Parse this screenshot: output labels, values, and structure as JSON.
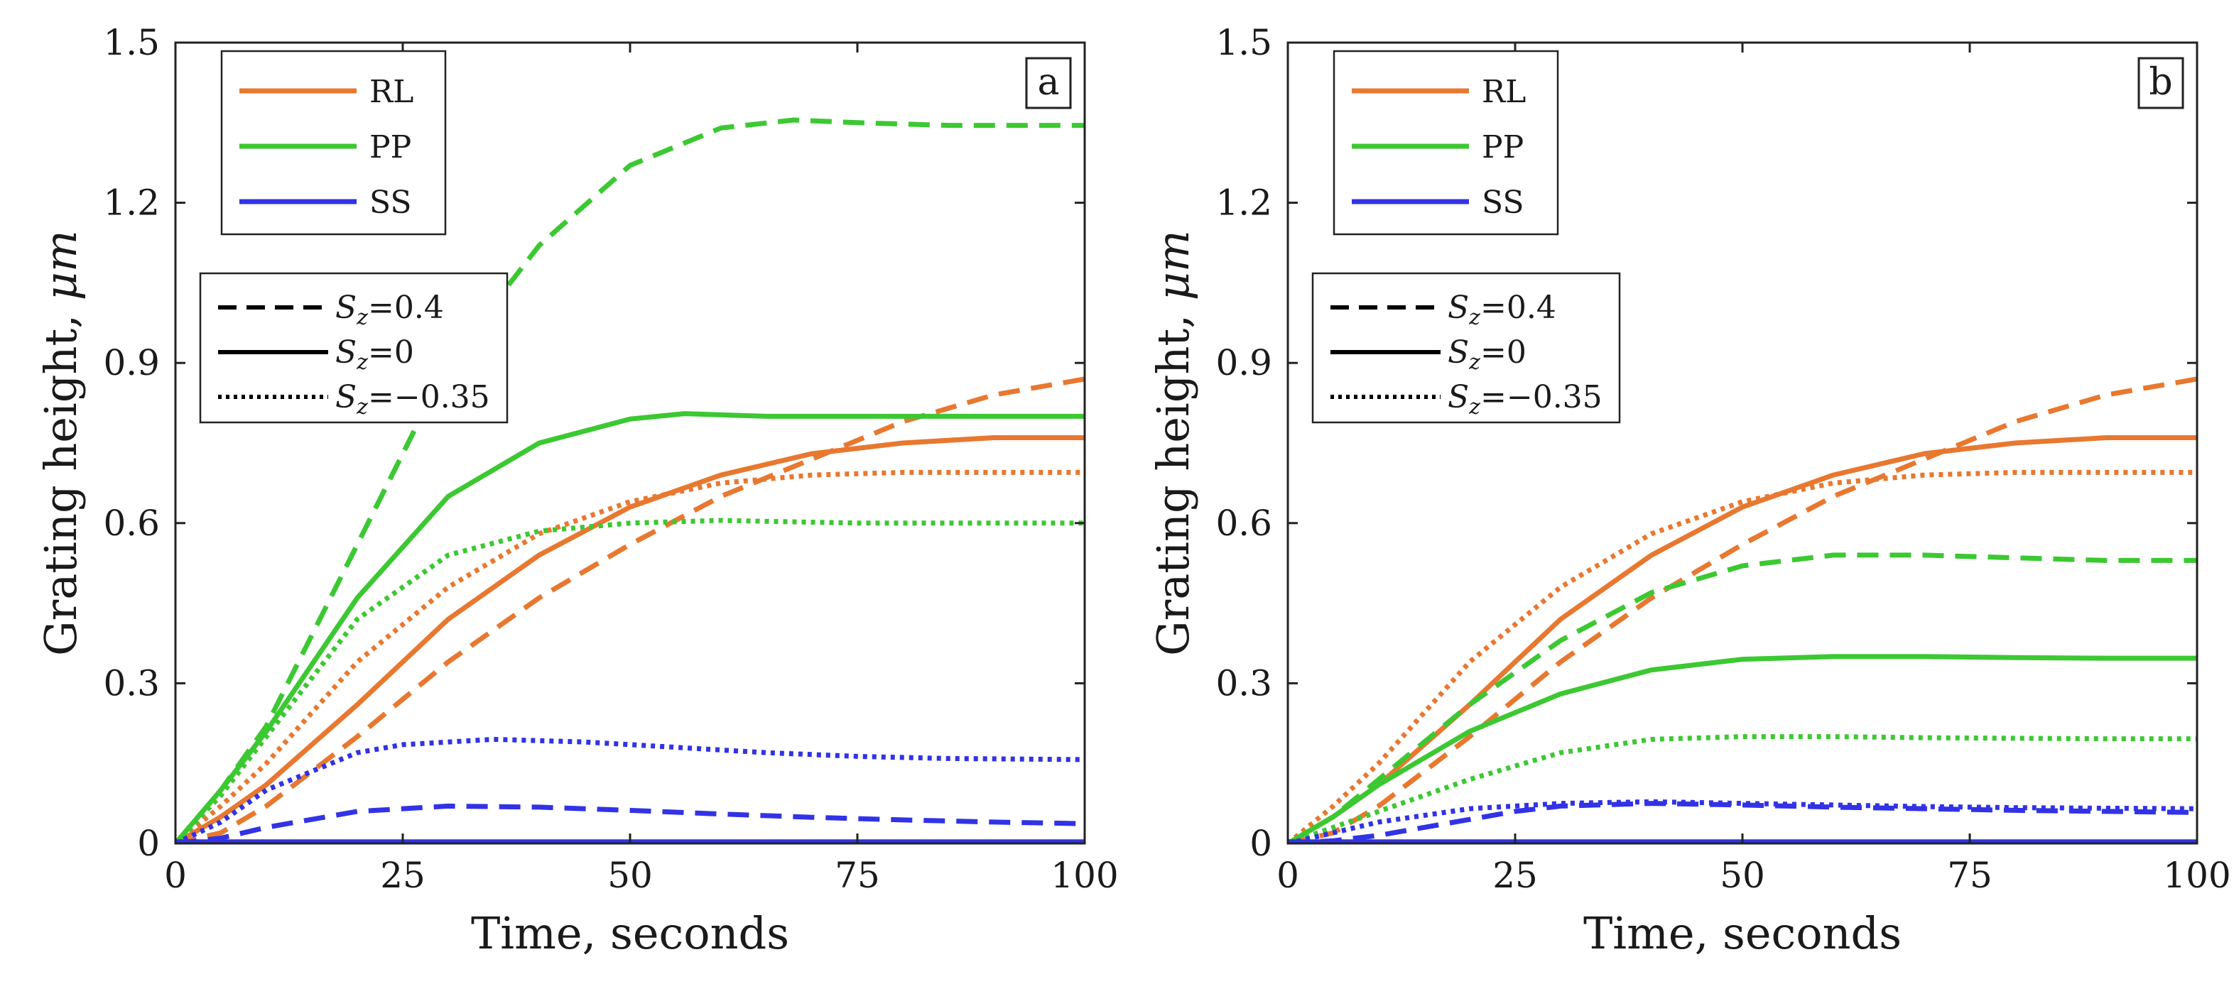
{
  "figure": {
    "colors": {
      "RL": "#E87830",
      "PP": "#3CC832",
      "SS": "#3232E6",
      "frame": "#222222",
      "legend_line": "#000000"
    }
  },
  "chart_data": [
    {
      "type": "line",
      "panel_label": "a",
      "xlabel": "Time, seconds",
      "ylabel_prefix": "Grating height, ",
      "ylabel_unit": "μm",
      "xlim": [
        0,
        100
      ],
      "ylim": [
        0,
        1.5
      ],
      "xticks": [
        0,
        25,
        50,
        75,
        100
      ],
      "xtick_labels": [
        "0",
        "25",
        "50",
        "75",
        "100"
      ],
      "yticks": [
        0,
        0.3,
        0.6,
        0.9,
        1.2,
        1.5
      ],
      "ytick_labels": [
        "0",
        "0.3",
        "0.6",
        "0.9",
        "1.2",
        "1.5"
      ],
      "legend_color": [
        {
          "label": "RL",
          "color": "#E87830"
        },
        {
          "label": "PP",
          "color": "#3CC832"
        },
        {
          "label": "SS",
          "color": "#3232E6"
        }
      ],
      "legend_style": [
        {
          "var": "S",
          "sub": "z",
          "value": "=0.4",
          "dash": "dashed"
        },
        {
          "var": "S",
          "sub": "z",
          "value": "=0",
          "dash": "solid"
        },
        {
          "var": "S",
          "sub": "z",
          "value": "=−0.35",
          "dash": "dotted"
        }
      ],
      "series": [
        {
          "name": "RL, Sz=0.4",
          "group": "RL",
          "style": "dashed",
          "x": [
            0,
            5,
            10,
            20,
            30,
            40,
            50,
            60,
            70,
            80,
            90,
            100
          ],
          "y": [
            0,
            0.02,
            0.07,
            0.2,
            0.34,
            0.46,
            0.56,
            0.65,
            0.72,
            0.79,
            0.84,
            0.87
          ]
        },
        {
          "name": "RL, Sz=0",
          "group": "RL",
          "style": "solid",
          "x": [
            0,
            5,
            10,
            20,
            30,
            40,
            50,
            60,
            70,
            80,
            90,
            100
          ],
          "y": [
            0,
            0.05,
            0.11,
            0.26,
            0.42,
            0.54,
            0.63,
            0.69,
            0.73,
            0.75,
            0.76,
            0.76
          ]
        },
        {
          "name": "RL, Sz=-0.35",
          "group": "RL",
          "style": "dotted",
          "x": [
            0,
            5,
            10,
            20,
            30,
            40,
            50,
            60,
            70,
            80,
            90,
            100
          ],
          "y": [
            0,
            0.07,
            0.15,
            0.34,
            0.48,
            0.58,
            0.64,
            0.675,
            0.69,
            0.695,
            0.695,
            0.695
          ]
        },
        {
          "name": "PP, Sz=0.4",
          "group": "PP",
          "style": "dashed",
          "x": [
            0,
            5,
            10,
            20,
            30,
            40,
            50,
            60,
            68,
            75,
            85,
            100
          ],
          "y": [
            0,
            0.1,
            0.22,
            0.56,
            0.9,
            1.12,
            1.27,
            1.34,
            1.355,
            1.35,
            1.345,
            1.345
          ]
        },
        {
          "name": "PP, Sz=0",
          "group": "PP",
          "style": "solid",
          "x": [
            0,
            5,
            10,
            20,
            30,
            40,
            50,
            56,
            65,
            75,
            85,
            100
          ],
          "y": [
            0,
            0.1,
            0.21,
            0.46,
            0.65,
            0.75,
            0.795,
            0.805,
            0.8,
            0.8,
            0.8,
            0.8
          ]
        },
        {
          "name": "PP, Sz=-0.35",
          "group": "PP",
          "style": "dotted",
          "x": [
            0,
            5,
            10,
            20,
            30,
            40,
            50,
            60,
            75,
            100
          ],
          "y": [
            0,
            0.09,
            0.2,
            0.42,
            0.54,
            0.585,
            0.6,
            0.605,
            0.6,
            0.6
          ]
        },
        {
          "name": "SS, Sz=0.4",
          "group": "SS",
          "style": "dashed",
          "x": [
            0,
            5,
            10,
            20,
            30,
            40,
            50,
            60,
            70,
            80,
            90,
            100
          ],
          "y": [
            0,
            0.01,
            0.03,
            0.06,
            0.07,
            0.068,
            0.062,
            0.055,
            0.049,
            0.044,
            0.04,
            0.037
          ]
        },
        {
          "name": "SS, Sz=0",
          "group": "SS",
          "style": "solid",
          "x": [
            0,
            100
          ],
          "y": [
            0.003,
            0.003
          ]
        },
        {
          "name": "SS, Sz=-0.35",
          "group": "SS",
          "style": "dotted",
          "x": [
            0,
            5,
            10,
            20,
            25,
            35,
            45,
            55,
            65,
            75,
            85,
            100
          ],
          "y": [
            0,
            0.04,
            0.1,
            0.17,
            0.185,
            0.195,
            0.19,
            0.18,
            0.17,
            0.163,
            0.159,
            0.157
          ]
        }
      ]
    },
    {
      "type": "line",
      "panel_label": "b",
      "xlabel": "Time, seconds",
      "ylabel_prefix": "Grating height, ",
      "ylabel_unit": "μm",
      "xlim": [
        0,
        100
      ],
      "ylim": [
        0,
        1.5
      ],
      "xticks": [
        0,
        25,
        50,
        75,
        100
      ],
      "xtick_labels": [
        "0",
        "25",
        "50",
        "75",
        "100"
      ],
      "yticks": [
        0,
        0.3,
        0.6,
        0.9,
        1.2,
        1.5
      ],
      "ytick_labels": [
        "0",
        "0.3",
        "0.6",
        "0.9",
        "1.2",
        "1.5"
      ],
      "legend_color": [
        {
          "label": "RL",
          "color": "#E87830"
        },
        {
          "label": "PP",
          "color": "#3CC832"
        },
        {
          "label": "SS",
          "color": "#3232E6"
        }
      ],
      "legend_style": [
        {
          "var": "S",
          "sub": "z",
          "value": "=0.4",
          "dash": "dashed"
        },
        {
          "var": "S",
          "sub": "z",
          "value": "=0",
          "dash": "solid"
        },
        {
          "var": "S",
          "sub": "z",
          "value": "=−0.35",
          "dash": "dotted"
        }
      ],
      "series": [
        {
          "name": "RL, Sz=0.4",
          "group": "RL",
          "style": "dashed",
          "x": [
            0,
            5,
            10,
            20,
            30,
            40,
            50,
            60,
            70,
            80,
            90,
            100
          ],
          "y": [
            0,
            0.02,
            0.07,
            0.2,
            0.34,
            0.46,
            0.56,
            0.65,
            0.72,
            0.79,
            0.84,
            0.87
          ]
        },
        {
          "name": "RL, Sz=0",
          "group": "RL",
          "style": "solid",
          "x": [
            0,
            5,
            10,
            20,
            30,
            40,
            50,
            60,
            70,
            80,
            90,
            100
          ],
          "y": [
            0,
            0.05,
            0.11,
            0.26,
            0.42,
            0.54,
            0.63,
            0.69,
            0.73,
            0.75,
            0.76,
            0.76
          ]
        },
        {
          "name": "RL, Sz=-0.35",
          "group": "RL",
          "style": "dotted",
          "x": [
            0,
            5,
            10,
            20,
            30,
            40,
            50,
            60,
            70,
            80,
            90,
            100
          ],
          "y": [
            0,
            0.07,
            0.15,
            0.34,
            0.48,
            0.58,
            0.64,
            0.675,
            0.69,
            0.695,
            0.695,
            0.695
          ]
        },
        {
          "name": "PP, Sz=0.4",
          "group": "PP",
          "style": "dashed",
          "x": [
            0,
            5,
            10,
            20,
            30,
            40,
            50,
            60,
            70,
            80,
            90,
            100
          ],
          "y": [
            0,
            0.05,
            0.12,
            0.26,
            0.38,
            0.47,
            0.52,
            0.54,
            0.54,
            0.535,
            0.53,
            0.53
          ]
        },
        {
          "name": "PP, Sz=0",
          "group": "PP",
          "style": "solid",
          "x": [
            0,
            5,
            10,
            20,
            30,
            40,
            50,
            60,
            70,
            80,
            90,
            100
          ],
          "y": [
            0,
            0.05,
            0.11,
            0.21,
            0.28,
            0.325,
            0.345,
            0.35,
            0.35,
            0.348,
            0.347,
            0.347
          ]
        },
        {
          "name": "PP, Sz=-0.35",
          "group": "PP",
          "style": "dotted",
          "x": [
            0,
            5,
            10,
            20,
            30,
            40,
            50,
            60,
            70,
            80,
            90,
            100
          ],
          "y": [
            0,
            0.03,
            0.06,
            0.12,
            0.17,
            0.195,
            0.2,
            0.2,
            0.198,
            0.197,
            0.196,
            0.196
          ]
        },
        {
          "name": "SS, Sz=0.4",
          "group": "SS",
          "style": "dashed",
          "x": [
            0,
            5,
            10,
            15,
            20,
            25,
            30,
            40,
            50,
            60,
            70,
            80,
            90,
            100
          ],
          "y": [
            0,
            0.005,
            0.015,
            0.03,
            0.045,
            0.06,
            0.07,
            0.075,
            0.072,
            0.068,
            0.065,
            0.062,
            0.06,
            0.058
          ]
        },
        {
          "name": "SS, Sz=0",
          "group": "SS",
          "style": "solid",
          "x": [
            0,
            100
          ],
          "y": [
            0.003,
            0.003
          ]
        },
        {
          "name": "SS, Sz=-0.35",
          "group": "SS",
          "style": "dotted",
          "x": [
            0,
            5,
            10,
            20,
            30,
            40,
            50,
            60,
            70,
            80,
            90,
            100
          ],
          "y": [
            0,
            0.02,
            0.04,
            0.065,
            0.075,
            0.078,
            0.075,
            0.072,
            0.069,
            0.067,
            0.066,
            0.065
          ]
        }
      ]
    }
  ]
}
